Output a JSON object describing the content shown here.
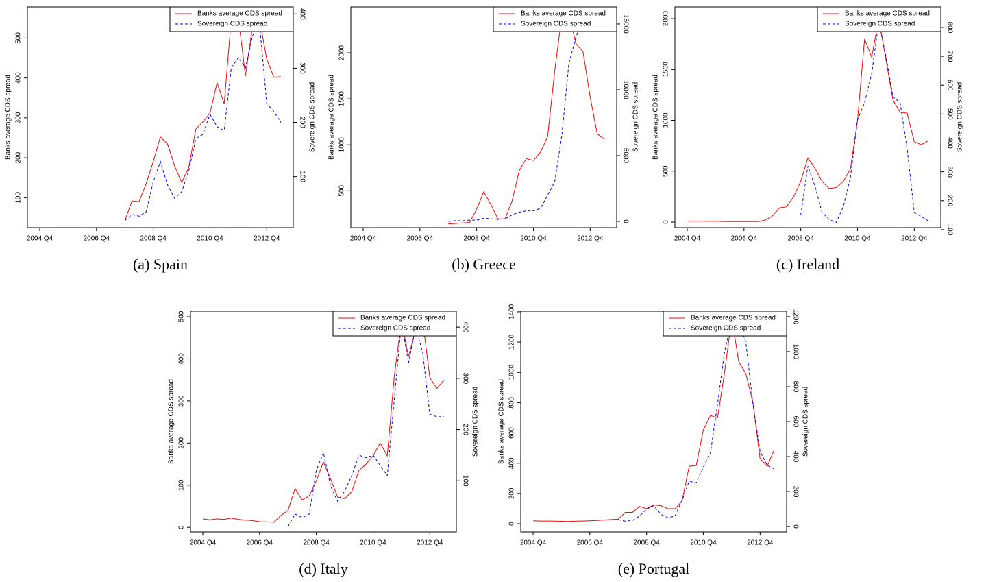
{
  "chart_data": [
    {
      "type": "line",
      "caption": "(a) Spain",
      "categories": [
        "2004 Q4",
        null,
        null,
        null,
        null,
        null,
        null,
        null,
        "2006 Q4",
        null,
        null,
        null,
        null,
        null,
        null,
        null,
        "2008 Q4",
        null,
        null,
        null,
        null,
        null,
        null,
        null,
        "2010 Q4",
        null,
        null,
        null,
        null,
        null,
        null,
        null,
        "2012 Q4",
        null,
        null
      ],
      "ylabel": "Banks average CDS spread",
      "y2label": "Sovereign CDS spread",
      "ylim": [
        25,
        578
      ],
      "yticks": [
        100,
        200,
        300,
        400,
        500
      ],
      "y2lim": [
        6,
        413
      ],
      "y2ticks": [
        100,
        200,
        300,
        400
      ],
      "legend": "top-right",
      "series": [
        {
          "name": "Banks average CDS spread",
          "color": "#ff0000",
          "line_style": "solid",
          "values": [
            null,
            null,
            null,
            null,
            null,
            null,
            null,
            null,
            null,
            null,
            null,
            null,
            42,
            92,
            90,
            135,
            190,
            252,
            235,
            180,
            138,
            175,
            272,
            290,
            312,
            388,
            335,
            548,
            550,
            405,
            530,
            545,
            447,
            402,
            403
          ]
        },
        {
          "name": "Sovereign CDS spread",
          "color": "#0000ff",
          "line_style": "dashed",
          "axis": "y2",
          "values": [
            null,
            null,
            null,
            null,
            null,
            null,
            null,
            null,
            null,
            null,
            null,
            null,
            19,
            30,
            27,
            35,
            90,
            128,
            85,
            60,
            72,
            110,
            170,
            178,
            215,
            192,
            185,
            300,
            320,
            300,
            360,
            380,
            235,
            220,
            200
          ]
        }
      ]
    },
    {
      "type": "line",
      "caption": "(b) Greece",
      "categories": [
        "2004 Q4",
        null,
        null,
        null,
        null,
        null,
        null,
        null,
        "2006 Q4",
        null,
        null,
        null,
        null,
        null,
        null,
        null,
        "2008 Q4",
        null,
        null,
        null,
        null,
        null,
        null,
        null,
        "2010 Q4",
        null,
        null,
        null,
        null,
        null,
        null,
        null,
        "2012 Q4",
        null,
        null
      ],
      "ylabel": "Banks average CDS spread",
      "y2label": "Sovereign CDS spread",
      "ylim": [
        100,
        2500
      ],
      "yticks": [
        500,
        1000,
        1500,
        2000
      ],
      "y2lim": [
        -470,
        16300
      ],
      "y2ticks": [
        0,
        5000,
        10000,
        15000
      ],
      "legend": "top-right",
      "series": [
        {
          "name": "Banks average CDS spread",
          "color": "#ff0000",
          "line_style": "solid",
          "values": [
            null,
            null,
            null,
            null,
            null,
            null,
            null,
            null,
            null,
            null,
            null,
            null,
            140,
            145,
            150,
            155,
            300,
            490,
            350,
            195,
            195,
            390,
            720,
            850,
            830,
            920,
            1090,
            1800,
            2400,
            2420,
            2100,
            2010,
            1520,
            1120,
            1060
          ]
        },
        {
          "name": "Sovereign CDS spread",
          "color": "#0000ff",
          "line_style": "dashed",
          "axis": "y2",
          "values": [
            null,
            null,
            null,
            null,
            null,
            null,
            null,
            null,
            null,
            null,
            null,
            null,
            0,
            50,
            50,
            100,
            100,
            250,
            200,
            150,
            200,
            500,
            700,
            800,
            800,
            1000,
            2000,
            3000,
            6500,
            12000,
            14000,
            15500,
            null,
            null,
            null
          ]
        }
      ]
    },
    {
      "type": "line",
      "caption": "(c) Ireland",
      "categories": [
        "2004 Q4",
        null,
        null,
        null,
        null,
        null,
        null,
        null,
        "2006 Q4",
        null,
        null,
        null,
        null,
        null,
        null,
        null,
        "2008 Q4",
        null,
        null,
        null,
        null,
        null,
        null,
        null,
        "2010 Q4",
        null,
        null,
        null,
        null,
        null,
        null,
        null,
        "2012 Q4",
        null,
        null
      ],
      "ylabel": "Banks average CDS spread",
      "y2label": "Sovereign CDS spread",
      "ylim": [
        -54,
        2115
      ],
      "yticks": [
        0,
        500,
        1000,
        1500,
        2000
      ],
      "y2lim": [
        107,
        871
      ],
      "y2ticks": [
        100,
        200,
        300,
        400,
        500,
        600,
        700,
        800
      ],
      "legend": "top-right",
      "series": [
        {
          "name": "Banks average CDS spread",
          "color": "#ff0000",
          "line_style": "solid",
          "values": [
            10,
            10,
            10,
            8,
            8,
            6,
            5,
            5,
            5,
            5,
            5,
            20,
            60,
            140,
            150,
            250,
            400,
            630,
            530,
            400,
            330,
            340,
            400,
            520,
            1000,
            1800,
            1620,
            2000,
            1600,
            1200,
            1080,
            1070,
            790,
            760,
            800
          ]
        },
        {
          "name": "Sovereign CDS spread",
          "color": "#0000ff",
          "line_style": "dashed",
          "axis": "y2",
          "values": [
            null,
            null,
            null,
            null,
            null,
            null,
            null,
            null,
            null,
            null,
            null,
            null,
            null,
            null,
            null,
            null,
            150,
            320,
            250,
            160,
            135,
            125,
            180,
            280,
            480,
            540,
            640,
            820,
            700,
            560,
            540,
            380,
            160,
            145,
            130
          ]
        }
      ]
    },
    {
      "type": "line",
      "caption": "(d) Italy",
      "categories": [
        "2004 Q4",
        null,
        null,
        null,
        null,
        null,
        null,
        null,
        "2006 Q4",
        null,
        null,
        null,
        null,
        null,
        null,
        null,
        "2008 Q4",
        null,
        null,
        null,
        null,
        null,
        null,
        null,
        "2010 Q4",
        null,
        null,
        null,
        null,
        null,
        null,
        null,
        "2012 Q4",
        null,
        null
      ],
      "ylabel": "Banks average CDS spread",
      "y2label": "Sovereign CDS spread",
      "ylim": [
        -11,
        513
      ],
      "yticks": [
        0,
        100,
        200,
        300,
        400,
        500
      ],
      "y2lim": [
        0,
        431
      ],
      "y2ticks": [
        100,
        200,
        300,
        400
      ],
      "legend": "top-right",
      "series": [
        {
          "name": "Banks average CDS spread",
          "color": "#ff0000",
          "line_style": "solid",
          "values": [
            20,
            18,
            20,
            19,
            22,
            19,
            17,
            16,
            13,
            13,
            12,
            28,
            40,
            92,
            65,
            75,
            110,
            155,
            115,
            72,
            68,
            85,
            135,
            150,
            170,
            200,
            170,
            360,
            490,
            405,
            470,
            490,
            355,
            330,
            350
          ]
        },
        {
          "name": "Sovereign CDS spread",
          "color": "#0000ff",
          "line_style": "dashed",
          "axis": "y2",
          "values": [
            null,
            null,
            null,
            null,
            null,
            null,
            null,
            null,
            null,
            null,
            null,
            null,
            10,
            35,
            28,
            35,
            120,
            155,
            90,
            60,
            80,
            110,
            150,
            145,
            150,
            130,
            110,
            260,
            410,
            330,
            400,
            350,
            230,
            225,
            225
          ]
        }
      ]
    },
    {
      "type": "line",
      "caption": "(e) Portugal",
      "categories": [
        "2004 Q4",
        null,
        null,
        null,
        null,
        null,
        null,
        null,
        "2006 Q4",
        null,
        null,
        null,
        null,
        null,
        null,
        null,
        "2008 Q4",
        null,
        null,
        null,
        null,
        null,
        null,
        null,
        "2010 Q4",
        null,
        null,
        null,
        null,
        null,
        null,
        null,
        "2012 Q4",
        null,
        null
      ],
      "ylabel": "Banks average CDS spread",
      "y2label": "Sovereign CDS spread",
      "ylim": [
        -54,
        1404
      ],
      "yticks": [
        0,
        200,
        400,
        600,
        800,
        1000,
        1200,
        1400
      ],
      "y2lim": [
        -31,
        1231
      ],
      "y2ticks": [
        0,
        200,
        400,
        600,
        800,
        1000,
        1200
      ],
      "legend": "top-right",
      "series": [
        {
          "name": "Banks average CDS spread",
          "color": "#ff0000",
          "line_style": "solid",
          "values": [
            20,
            18,
            18,
            17,
            16,
            15,
            17,
            18,
            20,
            22,
            25,
            28,
            30,
            75,
            75,
            115,
            100,
            125,
            120,
            100,
            100,
            150,
            380,
            385,
            620,
            715,
            700,
            1000,
            1360,
            1070,
            990,
            800,
            430,
            380,
            490
          ]
        },
        {
          "name": "Sovereign CDS spread",
          "color": "#0000ff",
          "line_style": "dashed",
          "axis": "y2",
          "values": [
            null,
            null,
            null,
            null,
            null,
            null,
            null,
            null,
            null,
            null,
            null,
            null,
            40,
            30,
            35,
            60,
            100,
            120,
            70,
            50,
            60,
            150,
            260,
            250,
            340,
            420,
            700,
            1000,
            1180,
            1180,
            1050,
            700,
            430,
            350,
            330
          ]
        }
      ]
    }
  ]
}
